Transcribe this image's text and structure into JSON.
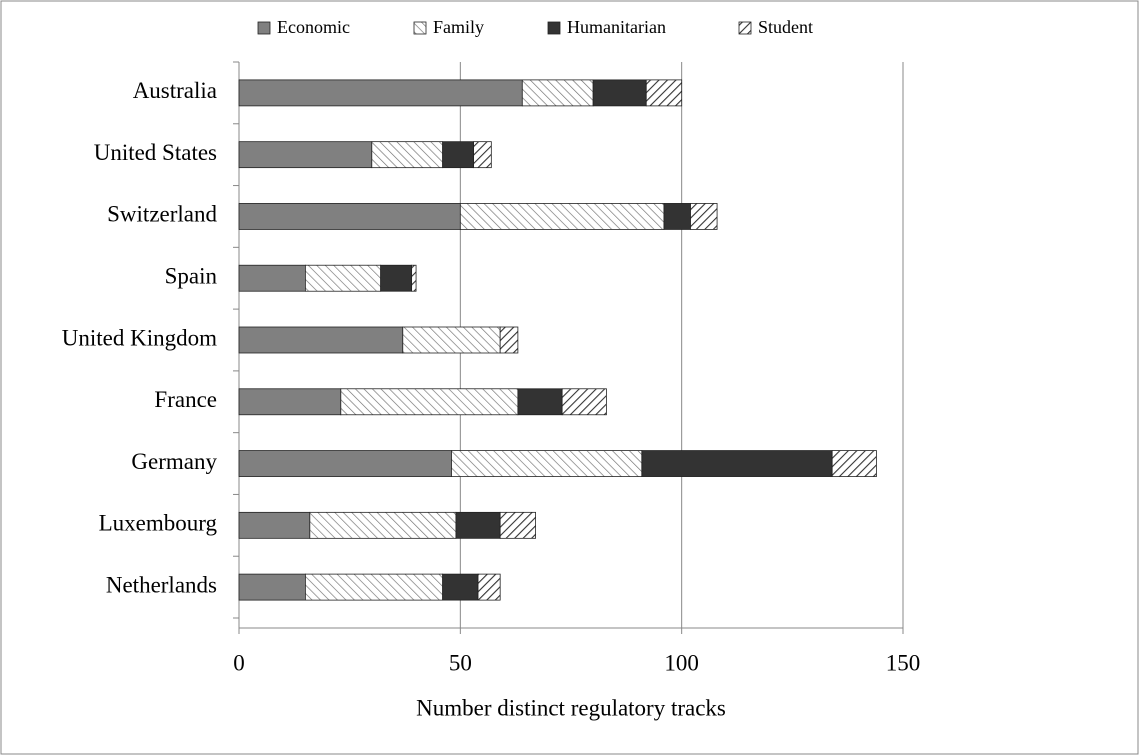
{
  "chart_data": {
    "type": "stacked-bar-horizontal",
    "x_label": "Number distinct regulatory tracks",
    "categories": [
      "Australia",
      "United States",
      "Switzerland",
      "Spain",
      "United Kingdom",
      "France",
      "Germany",
      "Luxembourg",
      "Netherlands"
    ],
    "series": [
      {
        "name": "Economic",
        "color": "#808080",
        "pattern": "solid",
        "values": [
          64,
          30,
          50,
          15,
          37,
          23,
          48,
          16,
          15
        ]
      },
      {
        "name": "Family",
        "color": "#6e6e6e",
        "pattern": "hatch-back",
        "values": [
          16,
          16,
          46,
          17,
          22,
          40,
          43,
          33,
          31
        ]
      },
      {
        "name": "Humanitarian",
        "color": "#333333",
        "pattern": "solid",
        "values": [
          12,
          7,
          6,
          7,
          0,
          10,
          43,
          10,
          8
        ]
      },
      {
        "name": "Student",
        "color": "#333333",
        "pattern": "hatch-forward",
        "values": [
          8,
          4,
          6,
          1,
          4,
          10,
          10,
          8,
          5
        ]
      }
    ],
    "xlim": [
      0,
      150
    ],
    "xticks": [
      0,
      50,
      100,
      150
    ],
    "grid": true,
    "legend": "top"
  }
}
